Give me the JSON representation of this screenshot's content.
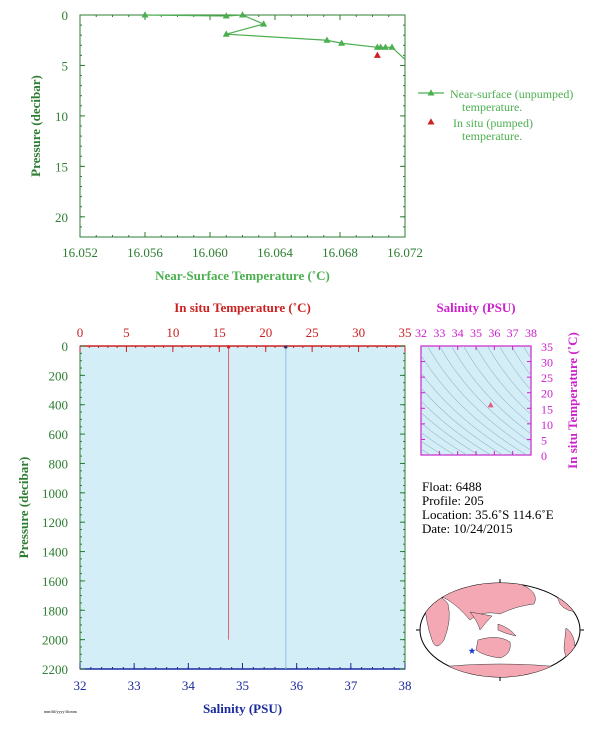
{
  "colors": {
    "green": "#2e7d32",
    "light_green": "#4caf50",
    "red": "#cc2222",
    "blue": "#1a2a9a",
    "magenta": "#cc22cc",
    "profile_bg": "#d4eef8"
  },
  "chart_data": [
    {
      "type": "line",
      "xlabel": "Near-Surface Temperature (˚C)",
      "ylabel": "Pressure (decibar)",
      "xlim": [
        16.052,
        16.072
      ],
      "ylim": [
        22,
        0
      ],
      "x_ticks": [
        "16.052",
        "16.056",
        "16.060",
        "16.064",
        "16.068",
        "16.072"
      ],
      "y_ticks": [
        "0",
        "5",
        "10",
        "15",
        "20"
      ],
      "series": [
        {
          "name": "Near-surface (unpumped) temperature.",
          "x": [
            16.056,
            16.061,
            16.062,
            16.0633,
            16.061,
            16.0672,
            16.0681,
            16.0703,
            16.0705,
            16.0708,
            16.0712,
            16.072
          ],
          "y": [
            0.0,
            0.1,
            0.0,
            0.9,
            1.9,
            2.5,
            2.8,
            3.2,
            3.2,
            3.2,
            3.2,
            4.4
          ]
        },
        {
          "name": "In situ (pumped) temperature.",
          "x": [
            16.0703
          ],
          "y": [
            4.0
          ]
        }
      ],
      "legend": [
        "Near-surface (unpumped)",
        "temperature.",
        "In situ (pumped)",
        "temperature."
      ]
    },
    {
      "type": "line",
      "xlabel": "Salinity (PSU)",
      "x2label": "In situ Temperature (˚C)",
      "ylabel": "Pressure (decibar)",
      "xlim": [
        32,
        38
      ],
      "x2lim": [
        0,
        35
      ],
      "ylim": [
        2200,
        0
      ],
      "x_ticks": [
        "32",
        "33",
        "34",
        "35",
        "36",
        "37",
        "38"
      ],
      "x2_ticks": [
        "0",
        "5",
        "10",
        "15",
        "20",
        "25",
        "30",
        "35"
      ],
      "y_ticks": [
        "0",
        "200",
        "400",
        "600",
        "800",
        "1000",
        "1200",
        "1400",
        "1600",
        "1800",
        "2000",
        "2200"
      ],
      "series": [
        {
          "name": "Temperature",
          "x": [
            16.0,
            16.0,
            16.0
          ],
          "y": [
            0,
            1050,
            2000
          ]
        },
        {
          "name": "Salinity",
          "x": [
            35.8,
            35.8
          ],
          "y": [
            0,
            2200
          ]
        }
      ]
    },
    {
      "type": "scatter",
      "xlabel": "Salinity (PSU)",
      "ylabel": "In situ Temperature (˚C)",
      "xlim": [
        32,
        38
      ],
      "ylim": [
        0,
        35
      ],
      "x_ticks": [
        "32",
        "33",
        "34",
        "35",
        "36",
        "37",
        "38"
      ],
      "y_ticks": [
        "0",
        "5",
        "10",
        "15",
        "20",
        "25",
        "30",
        "35"
      ],
      "points": [
        {
          "x": 35.8,
          "y": 16.0
        }
      ]
    }
  ],
  "float_info": {
    "float": "Float:  6488",
    "profile": "Profile:  205",
    "location": "Location:  35.6˚S  114.6˚E",
    "date": "Date:  10/24/2015"
  },
  "footer": {
    "small_text": "mm/dd/yyyy hh:mm"
  }
}
